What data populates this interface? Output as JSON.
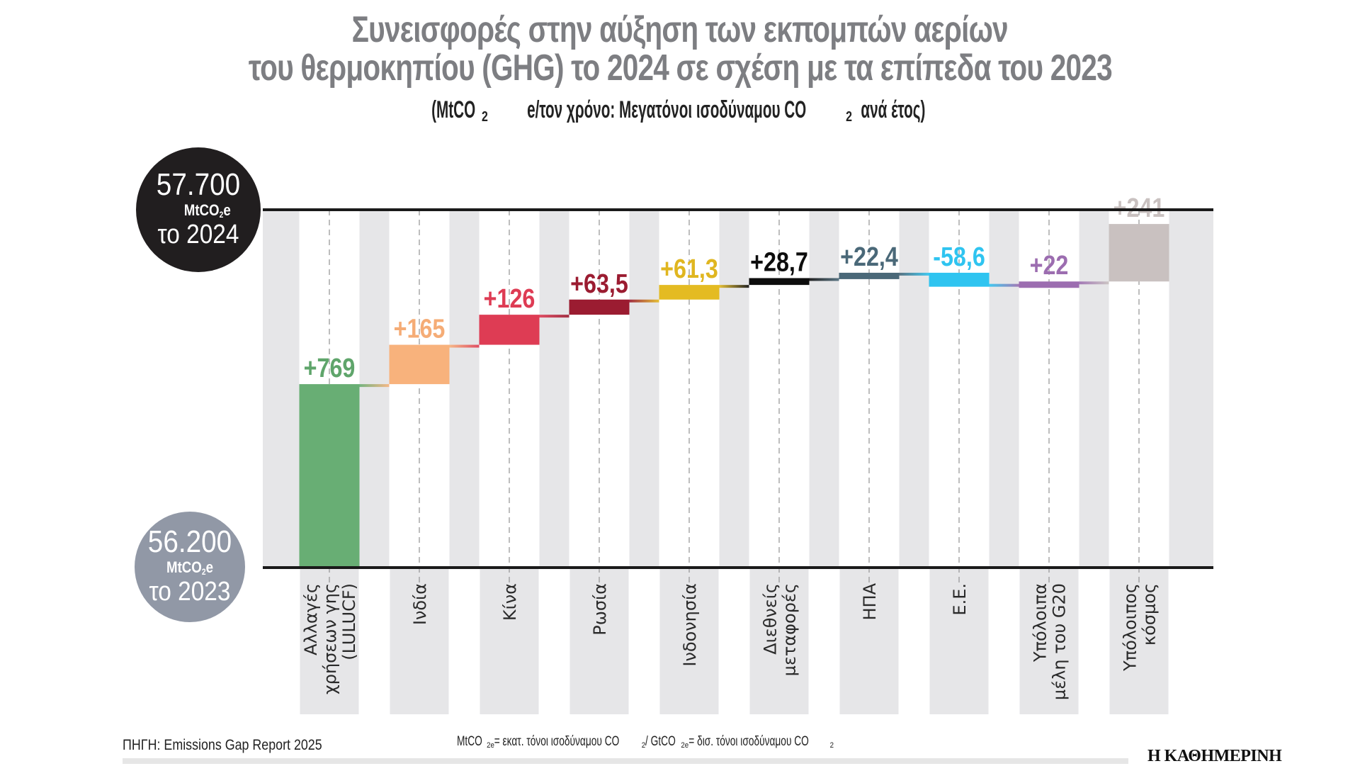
{
  "header": {
    "title_line1": "Συνεισφορές στην αύξηση των εκπομπών αερίων",
    "title_line2": "του θερμοκηπίου (GHG) το 2024 σε σχέση με τα επίπεδα του 2023",
    "subtitle_pre": "(MtCO",
    "subtitle_sub1": "2",
    "subtitle_mid": "e/τον χρόνο: Μεγατόνοι ισοδύναμου CO",
    "subtitle_sub2": "2",
    "subtitle_post": " ανά έτος)"
  },
  "totals": {
    "end": {
      "value": "57.700",
      "unit_pre": "MtCO",
      "unit_sub": "2",
      "unit_post": "e",
      "year": "το 2024",
      "color": "#211e1f"
    },
    "start": {
      "value": "56.200",
      "unit_pre": "MtCO",
      "unit_sub": "2",
      "unit_post": "e",
      "year": "το 2023",
      "color": "#9198a6"
    }
  },
  "chart_data": {
    "type": "bar",
    "subtype": "waterfall",
    "title": "Συνεισφορές στην αύξηση των εκπομπών αερίων του θερμοκηπίου (GHG) το 2024 σε σχέση με τα επίπεδα του 2023",
    "subtitle": "(MtCO2e/τον χρόνο: Μεγατόνοι ισοδύναμου CO2 ανά έτος)",
    "xlabel": "",
    "ylabel": "MtCO2e",
    "ylim": [
      56200,
      57700
    ],
    "start_value": 56200,
    "end_value": 57700,
    "categories": [
      "Αλλαγές χρήσεων γης (LULUCF)",
      "Ινδία",
      "Κίνα",
      "Ρωσία",
      "Ινδονησία",
      "Διεθνείς μεταφορές",
      "ΗΠΑ",
      "Ε.Ε.",
      "Υπόλοιπα μέλη του G20",
      "Υπόλοιπος κόσμος"
    ],
    "category_lines": [
      [
        "Αλλαγές",
        "χρήσεων γης",
        "(LULUCF)"
      ],
      [
        "Ινδία"
      ],
      [
        "Κίνα"
      ],
      [
        "Ρωσία"
      ],
      [
        "Ινδονησία"
      ],
      [
        "Διεθνείς",
        "μεταφορές"
      ],
      [
        "ΗΠΑ"
      ],
      [
        "Ε.Ε."
      ],
      [
        "Υπόλοιπα",
        "μέλη του G20"
      ],
      [
        "Υπόλοιπος",
        "κόσμος"
      ]
    ],
    "values": [
      769,
      165,
      126,
      63.5,
      61.3,
      28.7,
      22.4,
      -58.6,
      22,
      241
    ],
    "data_labels": [
      "+769",
      "+165",
      "+126",
      "+63,5",
      "+61,3",
      "+28,7",
      "+22,4",
      "-58,6",
      "+22",
      "+241"
    ],
    "colors": [
      "#68ae74",
      "#f8b27c",
      "#de3c54",
      "#9b1c31",
      "#e4bb22",
      "#0d0d0d",
      "#4a6878",
      "#2fc4f0",
      "#9c6db0",
      "#c9c1c0"
    ],
    "label_colors": [
      "#5fa56b",
      "#f5ac76",
      "#de3c54",
      "#9b1c31",
      "#e0b620",
      "#0d0d0d",
      "#4a6878",
      "#2fc4f0",
      "#9c6db0",
      "#c9c1c0"
    ],
    "grid": false
  },
  "footer": {
    "source": "ΠΗΓΗ: Emissions Gap Report 2025",
    "note_parts": [
      "MtCO",
      "2e",
      " = εκατ. τόνοι ισοδύναμου CO",
      "2",
      " / GtCO",
      "2e",
      " = δισ. τόνοι ισοδύναμου CO",
      "2"
    ],
    "brand": "Η ΚΑΘΗΜΕΡΙΝΗ"
  }
}
